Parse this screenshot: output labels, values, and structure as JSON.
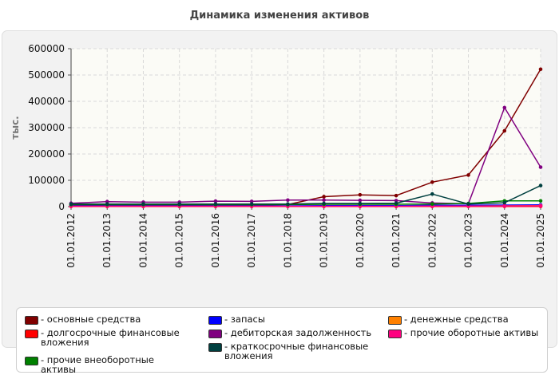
{
  "chart_data": {
    "type": "line",
    "title": "Динамика изменения активов",
    "ylabel": "тыс.",
    "xlabel": "",
    "ylim": [
      0,
      600000
    ],
    "yticks": [
      0,
      100000,
      200000,
      300000,
      400000,
      500000,
      600000
    ],
    "grid": true,
    "legend_position": "bottom",
    "categories": [
      "01.01.2012",
      "01.01.2013",
      "01.01.2014",
      "01.01.2015",
      "01.01.2016",
      "01.01.2017",
      "01.01.2018",
      "01.01.2019",
      "01.01.2020",
      "01.01.2021",
      "01.01.2022",
      "01.01.2023",
      "01.01.2024",
      "01.01.2025"
    ],
    "series": [
      {
        "name": "- основные средства",
        "color": "#800000",
        "values": [
          5000,
          5000,
          5000,
          5000,
          5000,
          5000,
          8000,
          38000,
          45000,
          42000,
          93000,
          120000,
          288000,
          522000
        ]
      },
      {
        "name": "- запасы",
        "color": "#0000ff",
        "values": [
          3000,
          3000,
          3000,
          3000,
          3000,
          3000,
          3000,
          4000,
          4000,
          4000,
          5000,
          5000,
          6000,
          7000
        ]
      },
      {
        "name": "- денежные средства",
        "color": "#ff8000",
        "values": [
          1000,
          1000,
          1000,
          1000,
          1000,
          1000,
          1000,
          1000,
          1000,
          1000,
          1500,
          2000,
          3000,
          4000
        ]
      },
      {
        "name": "- долгосрочные финансовые вложения",
        "color": "#ff0000",
        "values": [
          1000,
          1000,
          1000,
          1000,
          1000,
          1000,
          1000,
          1000,
          1000,
          1000,
          1000,
          1000,
          1000,
          1000
        ]
      },
      {
        "name": "- дебиторская задолженность",
        "color": "#800080",
        "values": [
          13000,
          19000,
          17000,
          17000,
          21000,
          20000,
          25000,
          25000,
          24000,
          23000,
          14000,
          11000,
          376000,
          150000
        ]
      },
      {
        "name": "- прочие оборотные активы",
        "color": "#ff0080",
        "values": [
          1500,
          1500,
          1500,
          1500,
          1500,
          1500,
          1500,
          1500,
          1500,
          1500,
          2000,
          2000,
          2500,
          3000
        ]
      },
      {
        "name": "- прочие внеоборотные активы",
        "color": "#008000",
        "values": [
          8000,
          8000,
          8000,
          8000,
          8000,
          8000,
          8000,
          9000,
          9000,
          9000,
          10000,
          12000,
          22000,
          22000
        ]
      },
      {
        "name": "- краткосрочные финансовые вложения",
        "color": "#004040",
        "values": [
          10000,
          10000,
          10000,
          10000,
          10000,
          10000,
          10000,
          12000,
          12000,
          13000,
          48000,
          10000,
          15000,
          80000
        ]
      }
    ]
  }
}
